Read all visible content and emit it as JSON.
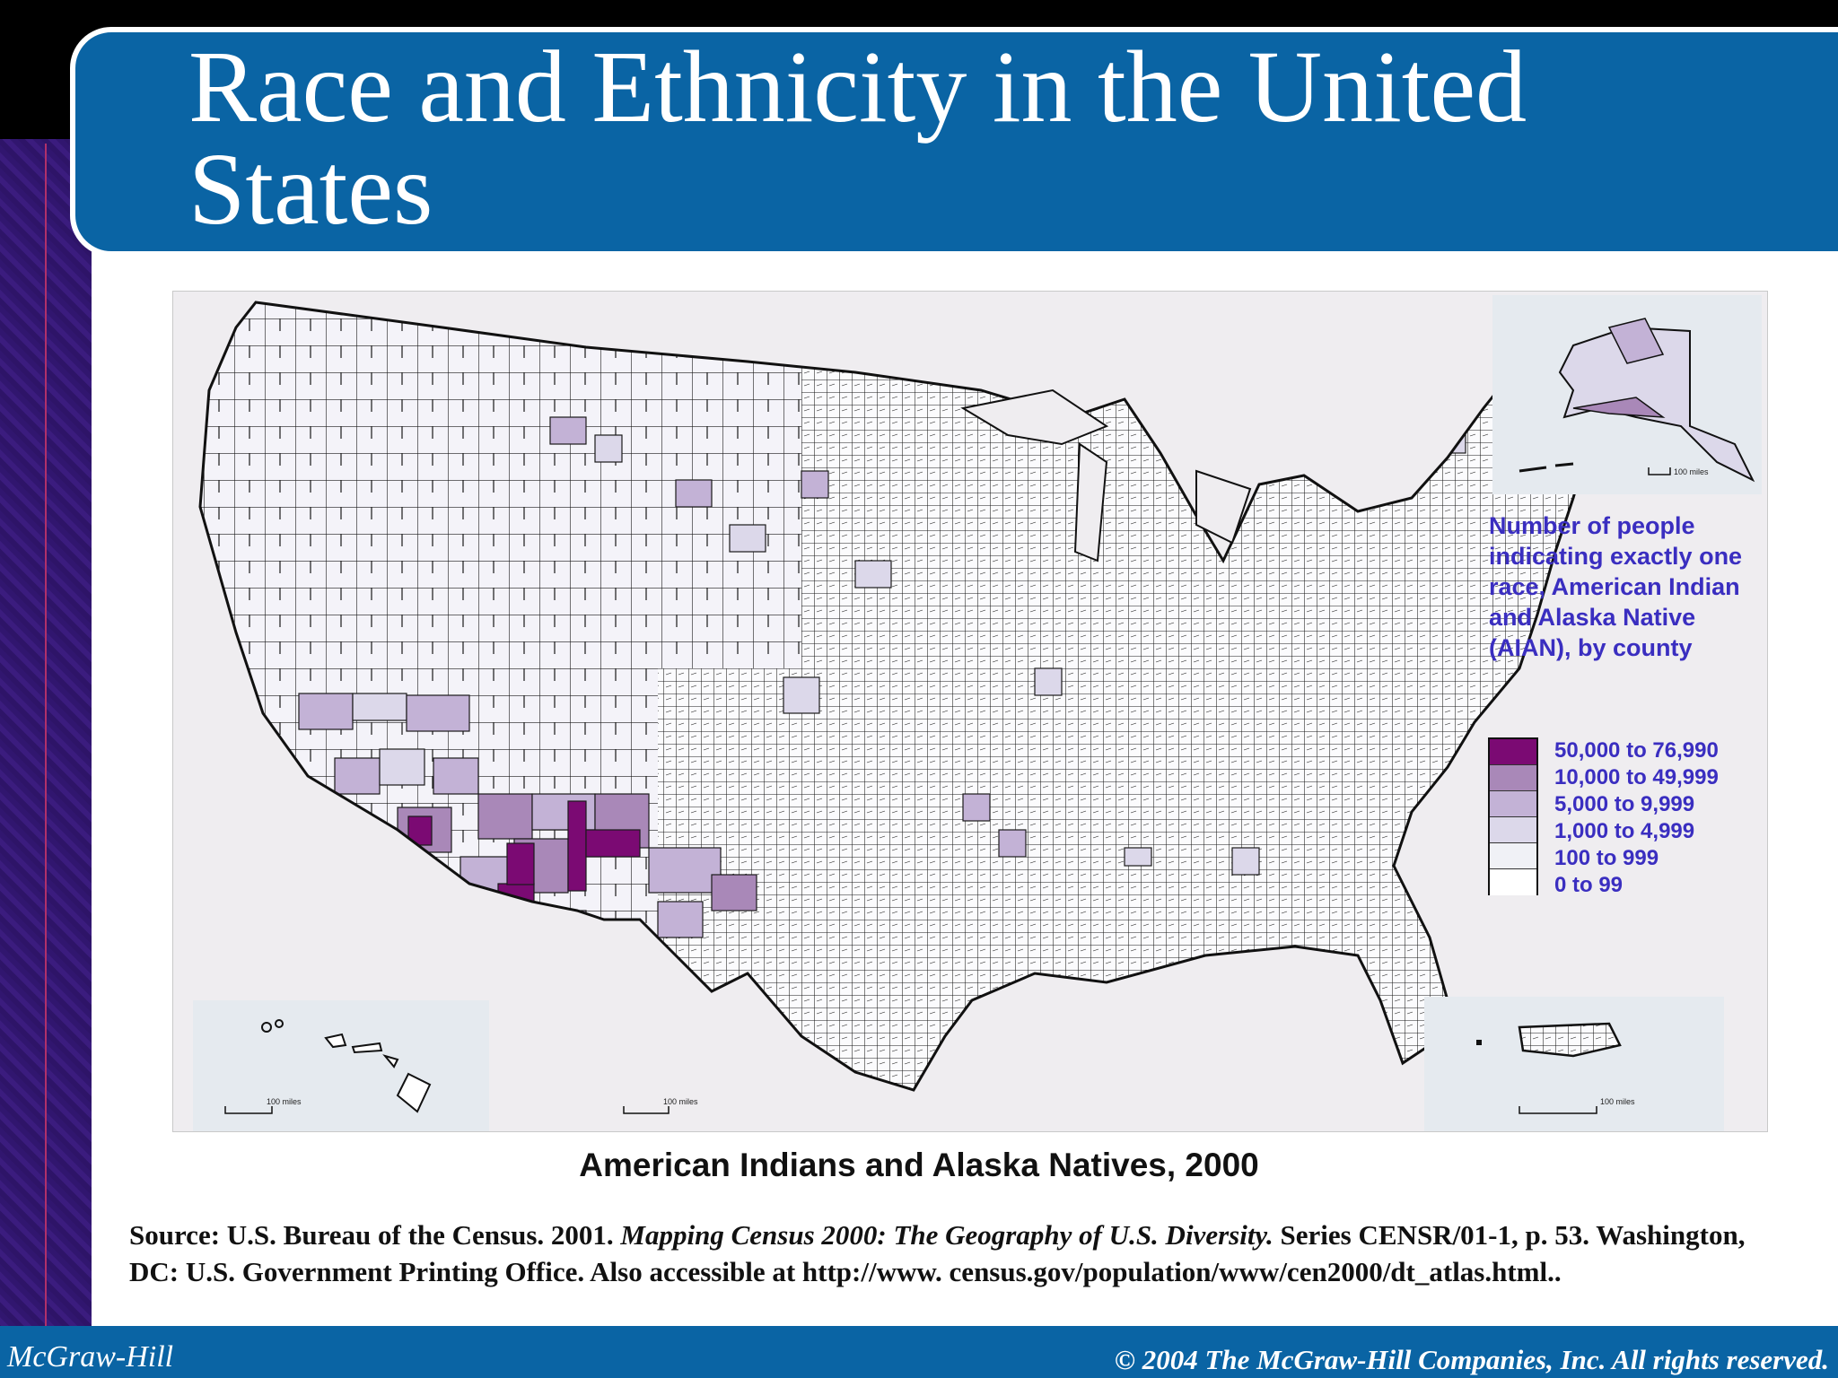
{
  "title": "Race and Ethnicity in the United States",
  "map": {
    "legend_title": "Number of people indicating exactly one race, American Indian and Alaska Native (AIAN), by county",
    "legend": [
      {
        "label": "50,000 to 76,990",
        "color": "#7b0a73"
      },
      {
        "label": "10,000 to 49,999",
        "color": "#a988b8"
      },
      {
        "label": "5,000 to 9,999",
        "color": "#c3b2d6"
      },
      {
        "label": "1,000 to 4,999",
        "color": "#dcd8ea"
      },
      {
        "label": "100 to 999",
        "color": "#f0f1f6"
      },
      {
        "label": "0 to 99",
        "color": "#ffffff"
      }
    ],
    "scale_labels": {
      "hawaii": "100 miles",
      "mainland": "100 miles",
      "alaska": "100 miles",
      "puerto_rico": "100 miles"
    },
    "caption": "American Indians and Alaska Natives, 2000"
  },
  "source": {
    "part1": "Source: U.S. Bureau of the Census. 2001. ",
    "italic": "Mapping Census 2000: The Geography of U.S. Diversity.",
    "part2": " Series CENSR/01-1, p. 53. Washington, DC: U.S. Government Printing Office. Also accessible at http://www. census.gov/population/www/cen2000/dt_atlas.html.."
  },
  "footer": {
    "left": "McGraw-Hill",
    "right": "© 2004 The McGraw-Hill Companies, Inc. All rights reserved."
  }
}
